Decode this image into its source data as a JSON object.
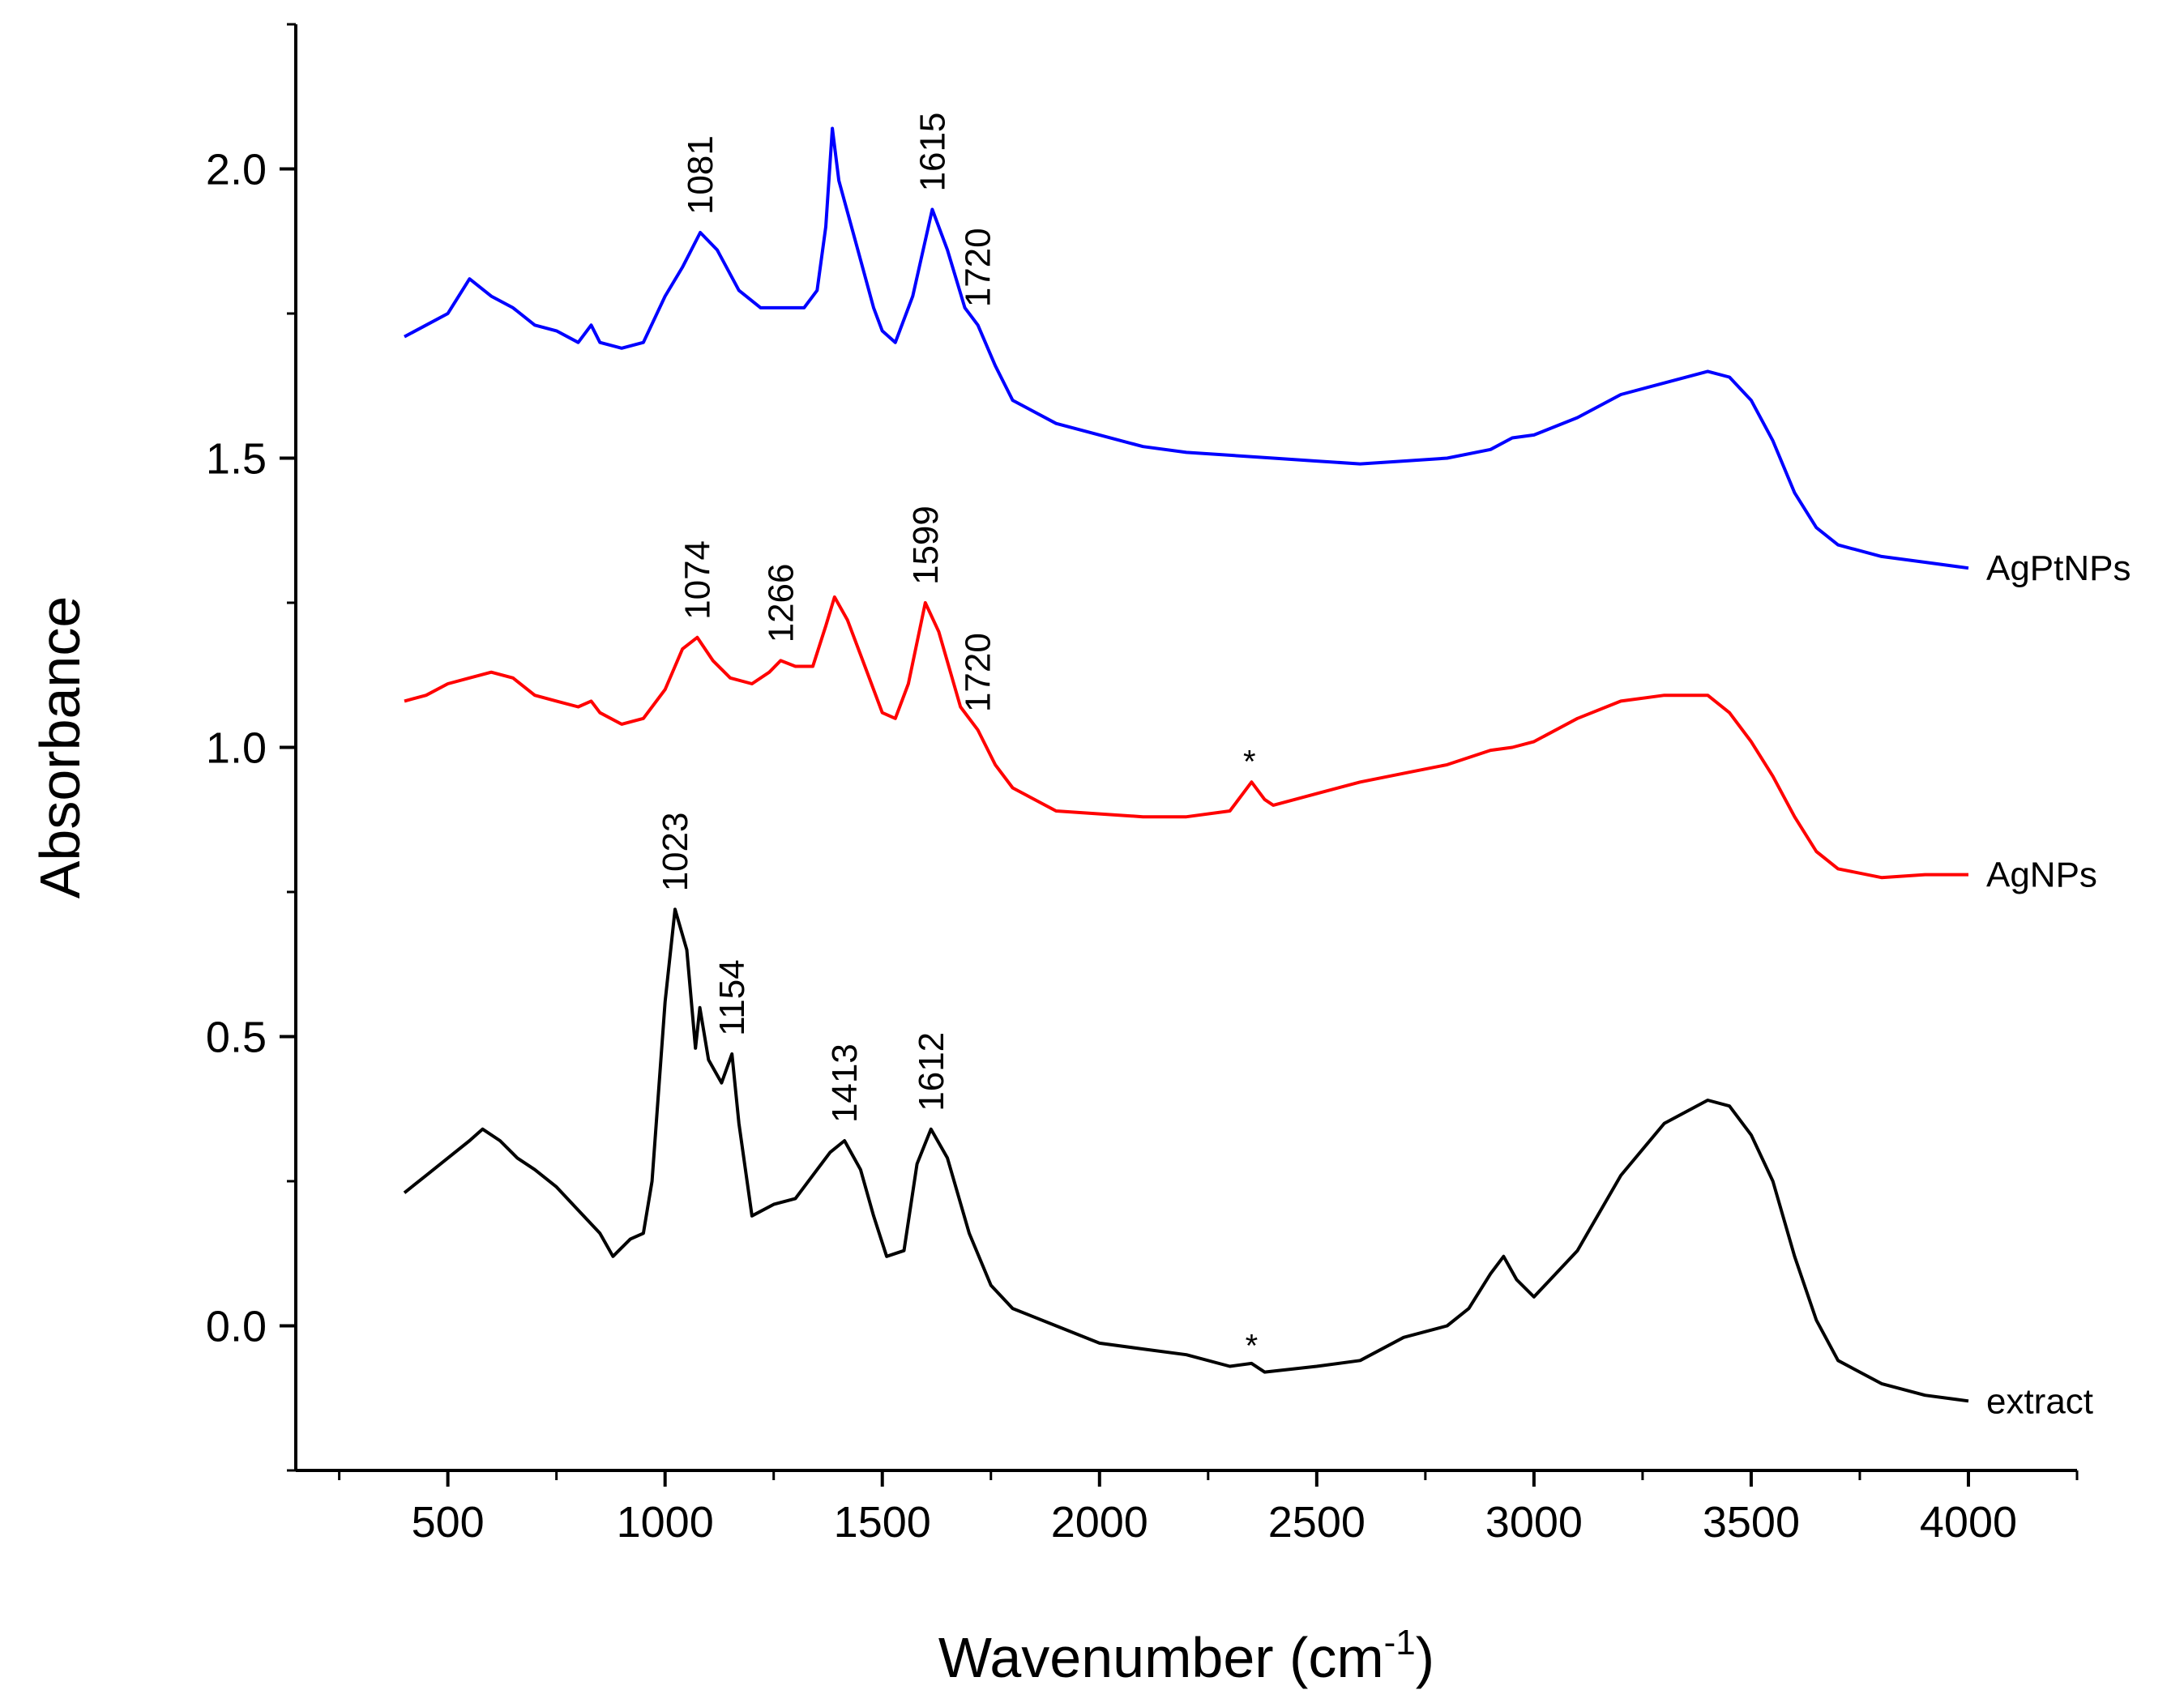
{
  "chart_data": {
    "type": "line",
    "xlabel_main": "Wavenumber (cm",
    "xlabel_sup": "-1",
    "xlabel_end": ")",
    "ylabel": "Absorbance",
    "xlim": [
      150,
      4250
    ],
    "ylim": [
      -0.25,
      2.25
    ],
    "xticks": [
      500,
      1000,
      1500,
      2000,
      2500,
      3000,
      3500,
      4000
    ],
    "xtick_labels": [
      "500",
      "1000",
      "1500",
      "2000",
      "2500",
      "3000",
      "3500",
      "4000"
    ],
    "yticks": [
      0.0,
      0.5,
      1.0,
      1.5,
      2.0
    ],
    "ytick_labels": [
      "0.0",
      "0.5",
      "1.0",
      "1.5",
      "2.0"
    ],
    "series": [
      {
        "name": "AgPtNPs",
        "color": "#0000ff",
        "points": [
          [
            400,
            1.71
          ],
          [
            450,
            1.73
          ],
          [
            500,
            1.75
          ],
          [
            550,
            1.81
          ],
          [
            600,
            1.78
          ],
          [
            650,
            1.76
          ],
          [
            700,
            1.73
          ],
          [
            750,
            1.72
          ],
          [
            800,
            1.7
          ],
          [
            830,
            1.73
          ],
          [
            850,
            1.7
          ],
          [
            900,
            1.69
          ],
          [
            950,
            1.7
          ],
          [
            1000,
            1.78
          ],
          [
            1040,
            1.83
          ],
          [
            1081,
            1.89
          ],
          [
            1120,
            1.86
          ],
          [
            1170,
            1.79
          ],
          [
            1220,
            1.76
          ],
          [
            1270,
            1.76
          ],
          [
            1320,
            1.76
          ],
          [
            1350,
            1.79
          ],
          [
            1370,
            1.9
          ],
          [
            1385,
            2.07
          ],
          [
            1400,
            1.98
          ],
          [
            1440,
            1.87
          ],
          [
            1480,
            1.76
          ],
          [
            1500,
            1.72
          ],
          [
            1530,
            1.7
          ],
          [
            1570,
            1.78
          ],
          [
            1615,
            1.93
          ],
          [
            1650,
            1.86
          ],
          [
            1690,
            1.76
          ],
          [
            1720,
            1.73
          ],
          [
            1760,
            1.66
          ],
          [
            1800,
            1.6
          ],
          [
            1900,
            1.56
          ],
          [
            2000,
            1.54
          ],
          [
            2100,
            1.52
          ],
          [
            2200,
            1.51
          ],
          [
            2300,
            1.505
          ],
          [
            2400,
            1.5
          ],
          [
            2500,
            1.495
          ],
          [
            2600,
            1.49
          ],
          [
            2700,
            1.495
          ],
          [
            2800,
            1.5
          ],
          [
            2900,
            1.515
          ],
          [
            2950,
            1.535
          ],
          [
            3000,
            1.54
          ],
          [
            3100,
            1.57
          ],
          [
            3200,
            1.61
          ],
          [
            3300,
            1.63
          ],
          [
            3400,
            1.65
          ],
          [
            3450,
            1.64
          ],
          [
            3500,
            1.6
          ],
          [
            3550,
            1.53
          ],
          [
            3600,
            1.44
          ],
          [
            3650,
            1.38
          ],
          [
            3700,
            1.35
          ],
          [
            3800,
            1.33
          ],
          [
            3900,
            1.32
          ],
          [
            4000,
            1.31
          ]
        ],
        "peak_labels": [
          {
            "x": 1081,
            "text": "1081"
          },
          {
            "x": 1615,
            "text": "1615"
          },
          {
            "x": 1720,
            "text": "1720"
          }
        ]
      },
      {
        "name": "AgNPs",
        "color": "#ff0000",
        "points": [
          [
            400,
            1.08
          ],
          [
            450,
            1.09
          ],
          [
            500,
            1.11
          ],
          [
            550,
            1.12
          ],
          [
            600,
            1.13
          ],
          [
            650,
            1.12
          ],
          [
            700,
            1.09
          ],
          [
            750,
            1.08
          ],
          [
            800,
            1.07
          ],
          [
            830,
            1.08
          ],
          [
            850,
            1.06
          ],
          [
            900,
            1.04
          ],
          [
            950,
            1.05
          ],
          [
            1000,
            1.1
          ],
          [
            1040,
            1.17
          ],
          [
            1074,
            1.19
          ],
          [
            1110,
            1.15
          ],
          [
            1150,
            1.12
          ],
          [
            1200,
            1.11
          ],
          [
            1240,
            1.13
          ],
          [
            1266,
            1.15
          ],
          [
            1300,
            1.14
          ],
          [
            1340,
            1.14
          ],
          [
            1370,
            1.21
          ],
          [
            1390,
            1.26
          ],
          [
            1420,
            1.22
          ],
          [
            1460,
            1.14
          ],
          [
            1500,
            1.06
          ],
          [
            1530,
            1.05
          ],
          [
            1560,
            1.11
          ],
          [
            1599,
            1.25
          ],
          [
            1630,
            1.2
          ],
          [
            1680,
            1.07
          ],
          [
            1720,
            1.03
          ],
          [
            1760,
            0.97
          ],
          [
            1800,
            0.93
          ],
          [
            1900,
            0.89
          ],
          [
            2000,
            0.885
          ],
          [
            2100,
            0.88
          ],
          [
            2200,
            0.88
          ],
          [
            2300,
            0.89
          ],
          [
            2330,
            0.92
          ],
          [
            2350,
            0.94
          ],
          [
            2380,
            0.91
          ],
          [
            2400,
            0.9
          ],
          [
            2500,
            0.92
          ],
          [
            2600,
            0.94
          ],
          [
            2700,
            0.955
          ],
          [
            2800,
            0.97
          ],
          [
            2900,
            0.995
          ],
          [
            2950,
            1.0
          ],
          [
            3000,
            1.01
          ],
          [
            3100,
            1.05
          ],
          [
            3200,
            1.08
          ],
          [
            3300,
            1.09
          ],
          [
            3400,
            1.09
          ],
          [
            3450,
            1.06
          ],
          [
            3500,
            1.01
          ],
          [
            3550,
            0.95
          ],
          [
            3600,
            0.88
          ],
          [
            3650,
            0.82
          ],
          [
            3700,
            0.79
          ],
          [
            3800,
            0.775
          ],
          [
            3900,
            0.78
          ],
          [
            4000,
            0.78
          ]
        ],
        "peak_labels": [
          {
            "x": 1074,
            "text": "1074"
          },
          {
            "x": 1266,
            "text": "1266"
          },
          {
            "x": 1599,
            "text": "1599"
          },
          {
            "x": 1720,
            "text": "1720"
          }
        ]
      },
      {
        "name": "extract",
        "color": "#000000",
        "points": [
          [
            400,
            0.23
          ],
          [
            450,
            0.26
          ],
          [
            500,
            0.29
          ],
          [
            550,
            0.32
          ],
          [
            580,
            0.34
          ],
          [
            620,
            0.32
          ],
          [
            660,
            0.29
          ],
          [
            700,
            0.27
          ],
          [
            750,
            0.24
          ],
          [
            800,
            0.2
          ],
          [
            850,
            0.16
          ],
          [
            880,
            0.12
          ],
          [
            920,
            0.15
          ],
          [
            950,
            0.16
          ],
          [
            970,
            0.25
          ],
          [
            1000,
            0.56
          ],
          [
            1023,
            0.72
          ],
          [
            1050,
            0.65
          ],
          [
            1070,
            0.48
          ],
          [
            1080,
            0.55
          ],
          [
            1100,
            0.46
          ],
          [
            1130,
            0.42
          ],
          [
            1154,
            0.47
          ],
          [
            1170,
            0.35
          ],
          [
            1200,
            0.19
          ],
          [
            1250,
            0.21
          ],
          [
            1300,
            0.22
          ],
          [
            1350,
            0.27
          ],
          [
            1380,
            0.3
          ],
          [
            1413,
            0.32
          ],
          [
            1450,
            0.27
          ],
          [
            1480,
            0.19
          ],
          [
            1510,
            0.12
          ],
          [
            1550,
            0.13
          ],
          [
            1580,
            0.28
          ],
          [
            1612,
            0.34
          ],
          [
            1650,
            0.29
          ],
          [
            1700,
            0.16
          ],
          [
            1750,
            0.07
          ],
          [
            1800,
            0.03
          ],
          [
            1900,
            0.0
          ],
          [
            2000,
            -0.03
          ],
          [
            2100,
            -0.04
          ],
          [
            2200,
            -0.05
          ],
          [
            2300,
            -0.07
          ],
          [
            2350,
            -0.065
          ],
          [
            2380,
            -0.08
          ],
          [
            2500,
            -0.07
          ],
          [
            2600,
            -0.06
          ],
          [
            2700,
            -0.02
          ],
          [
            2800,
            0.0
          ],
          [
            2850,
            0.03
          ],
          [
            2900,
            0.09
          ],
          [
            2930,
            0.12
          ],
          [
            2960,
            0.08
          ],
          [
            3000,
            0.05
          ],
          [
            3100,
            0.13
          ],
          [
            3200,
            0.26
          ],
          [
            3300,
            0.35
          ],
          [
            3400,
            0.39
          ],
          [
            3450,
            0.38
          ],
          [
            3500,
            0.33
          ],
          [
            3550,
            0.25
          ],
          [
            3600,
            0.12
          ],
          [
            3650,
            0.01
          ],
          [
            3700,
            -0.06
          ],
          [
            3800,
            -0.1
          ],
          [
            3900,
            -0.12
          ],
          [
            4000,
            -0.13
          ]
        ],
        "peak_labels": [
          {
            "x": 1023,
            "text": "1023"
          },
          {
            "x": 1154,
            "text": "1154"
          },
          {
            "x": 1413,
            "text": "1413"
          },
          {
            "x": 1612,
            "text": "1612"
          }
        ]
      }
    ],
    "annotations": [
      {
        "text": "*",
        "x": 2345,
        "y": 0.94
      },
      {
        "text": "*",
        "x": 2350,
        "y": -0.07
      }
    ]
  }
}
